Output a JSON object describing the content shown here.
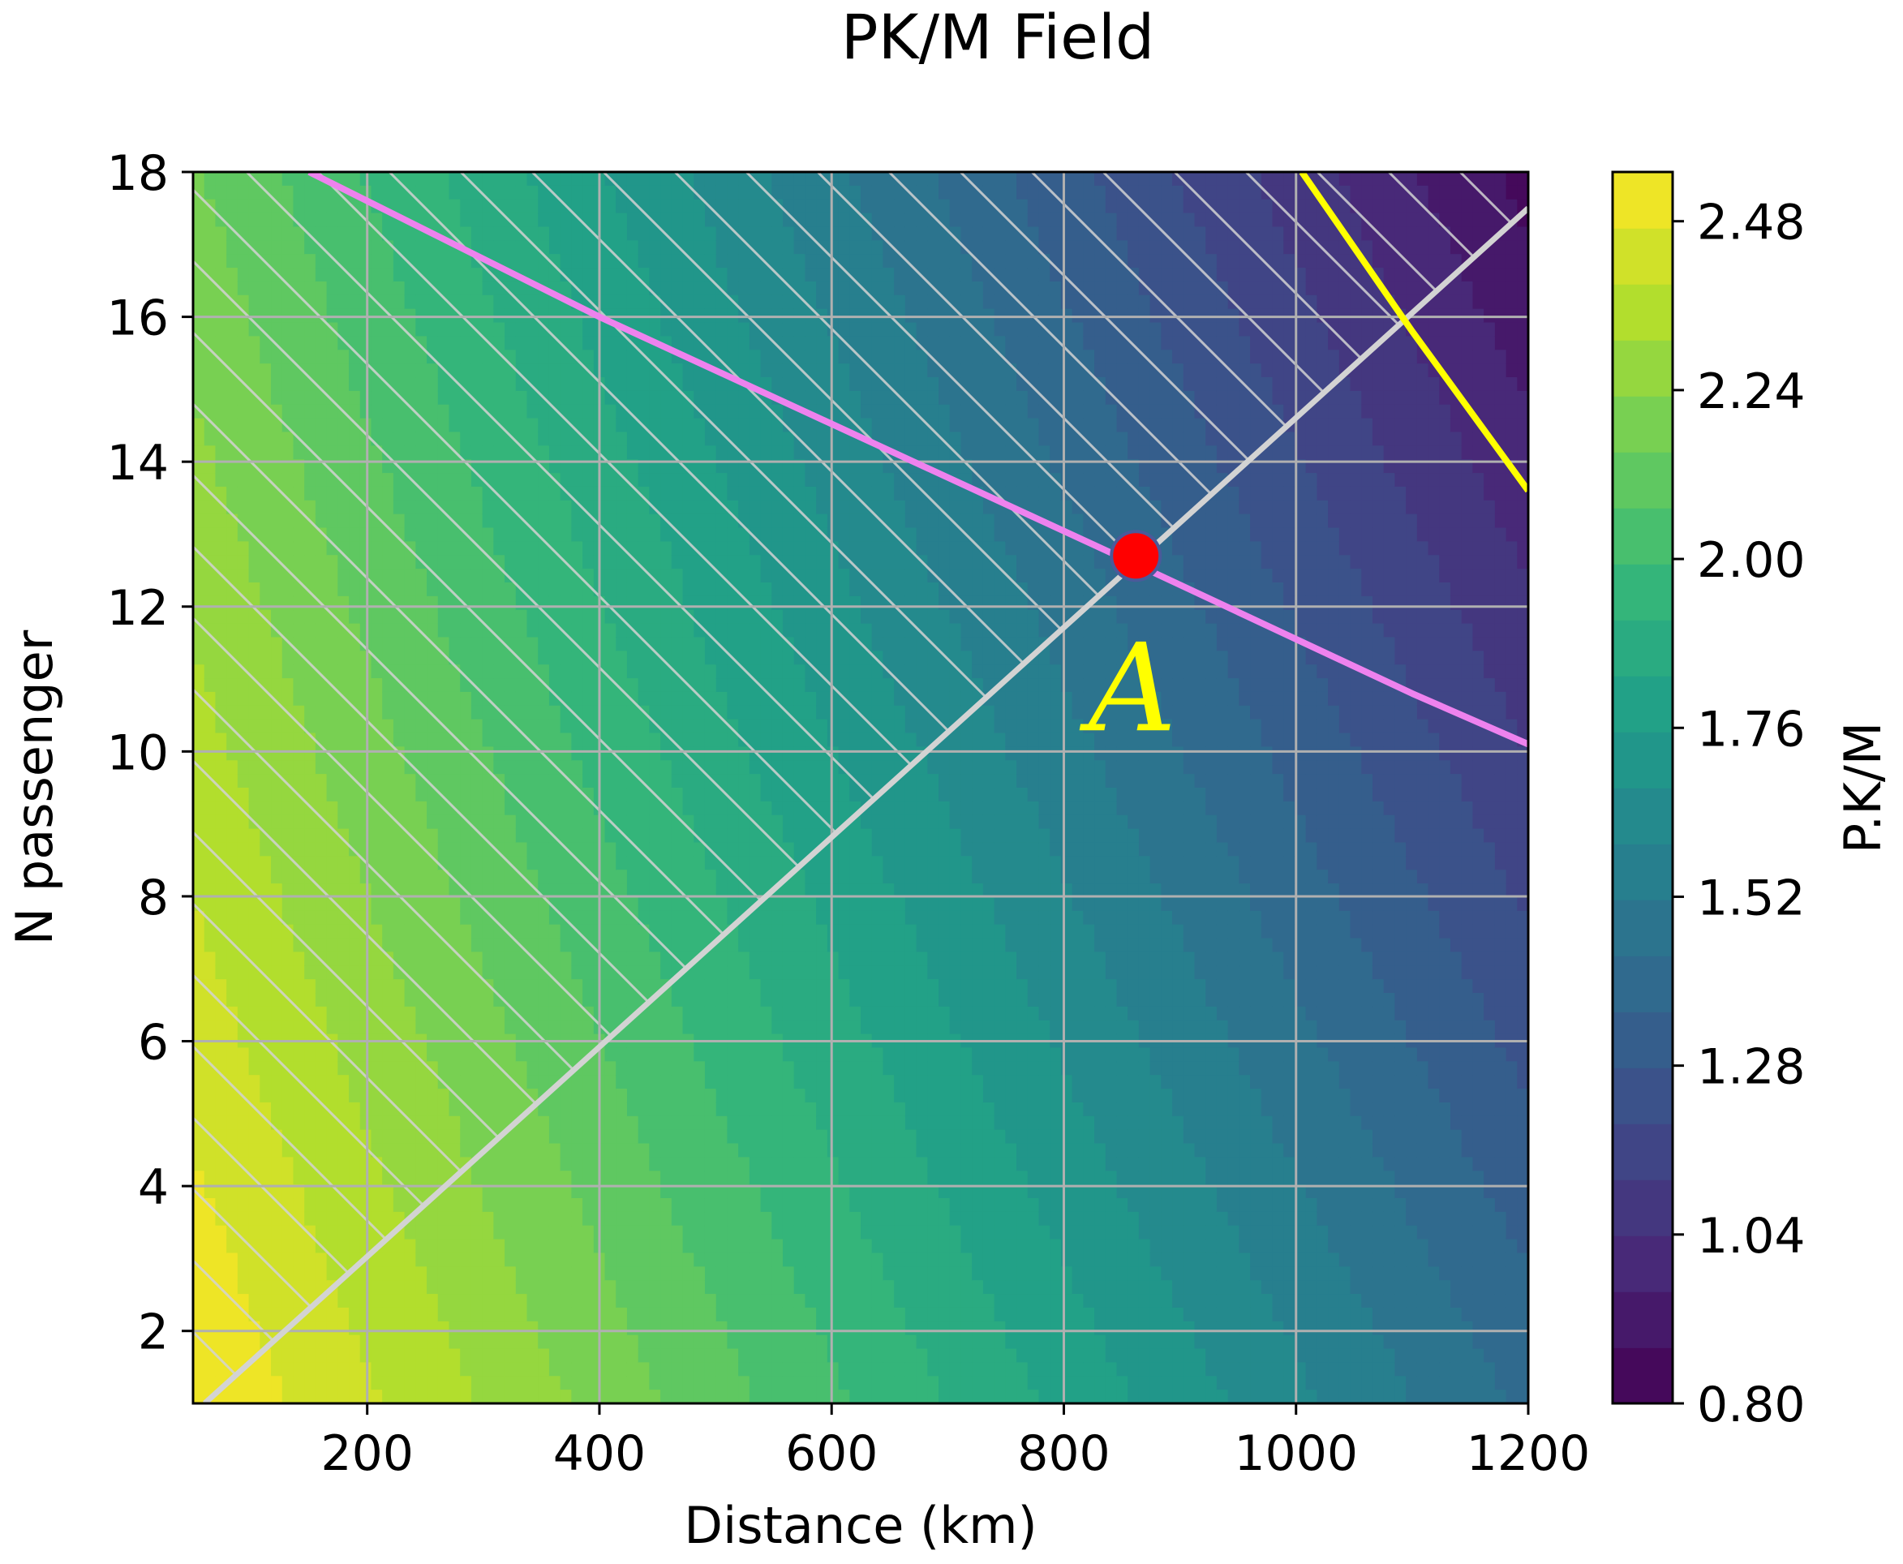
{
  "chart_data": {
    "type": "contourf",
    "title": "PK/M Field",
    "xlabel": "Distance (km)",
    "ylabel": "N passenger",
    "xlim": [
      50,
      1200
    ],
    "ylim": [
      1,
      18
    ],
    "xticks": [
      200,
      400,
      600,
      800,
      1000,
      1200
    ],
    "xtick_labels": [
      "200",
      "400",
      "600",
      "800",
      "1000",
      "1200"
    ],
    "yticks": [
      2,
      4,
      6,
      8,
      10,
      12,
      14,
      16,
      18
    ],
    "ytick_labels": [
      "2",
      "4",
      "6",
      "8",
      "10",
      "12",
      "14",
      "16",
      "18"
    ],
    "grid": true,
    "colormap": "viridis",
    "colorbar": {
      "label": "P.K/M",
      "range": [
        0.8,
        2.55
      ],
      "ticks": [
        0.8,
        1.04,
        1.28,
        1.52,
        1.76,
        2.0,
        2.24,
        2.48
      ],
      "tick_labels": [
        "0.80",
        "1.04",
        "1.28",
        "1.52",
        "1.76",
        "2.00",
        "2.24",
        "2.48"
      ],
      "levels": 22
    },
    "field_approx": {
      "description": "PK/M decreasing with distance and with passengers",
      "corner_values": {
        "x50_y1": 2.55,
        "x1200_y1": 1.42,
        "x50_y18": 2.16,
        "x1200_y18": 0.85
      }
    },
    "series": [
      {
        "name": "grey boundary line",
        "color": "#d3d3d3",
        "x": [
          60,
          1200
        ],
        "y": [
          1.0,
          17.5
        ]
      },
      {
        "name": "violet constraint line",
        "color": "#ee82ee",
        "x": [
          150,
          400,
          860,
          1100,
          1200
        ],
        "y": [
          18.0,
          16.0,
          12.6,
          10.8,
          10.1
        ]
      },
      {
        "name": "yellow constraint line",
        "color": "#ffff00",
        "x": [
          1005,
          1100,
          1200
        ],
        "y": [
          18.0,
          15.8,
          13.6
        ]
      }
    ],
    "points": [
      {
        "name": "A",
        "x": 862,
        "y": 12.7,
        "color": "#ff0000",
        "label": "A"
      }
    ],
    "hatching": {
      "region": "left of grey line",
      "color": "#d3d3d3",
      "style": "diagonal"
    }
  }
}
